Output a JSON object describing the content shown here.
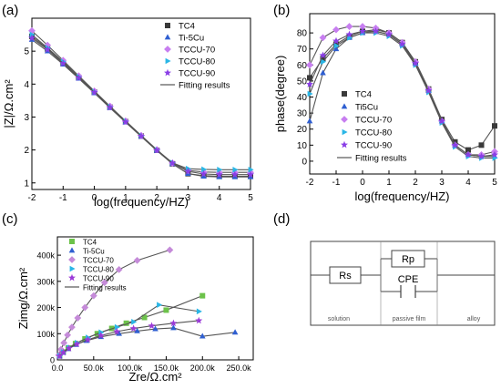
{
  "panels": {
    "a": "(a)",
    "b": "(b)",
    "c": "(c)",
    "d": "(d)"
  },
  "colors": {
    "TC4": "#3a3a3a",
    "Ti-5Cu": "#2f5fd1",
    "TCCU-70": "#c77ef0",
    "TCCU-80": "#2ab6e6",
    "TCCU-90": "#8a3ee6",
    "fit": "#555555",
    "TC4_c": "#6cc24a",
    "TCCU-70_c": "#c58bd9",
    "TCCU-80_c": "#2ab6e6",
    "TCCU-90_c": "#9b3ad8",
    "Ti-5Cu_c": "#2f5fd1"
  },
  "chart_data": [
    {
      "type": "scatter",
      "panel": "(a)",
      "xlabel": "log(frequency/HZ)",
      "ylabel": "|Z|/Ω.cm²",
      "xlim": [
        -2,
        5
      ],
      "ylim": [
        0.8,
        6
      ],
      "xticks": [
        "-2",
        "-1",
        "0",
        "1",
        "2",
        "3",
        "4",
        "5"
      ],
      "yticks": [
        "1",
        "2",
        "3",
        "4",
        "5"
      ],
      "legend": [
        "TC4",
        "Ti-5Cu",
        "TCCU-70",
        "TCCU-80",
        "TCCU-90",
        "Fitting results"
      ],
      "legend_position": "top-right",
      "series": [
        {
          "name": "TC4",
          "marker": "square",
          "x": [
            -2,
            -1.5,
            -1,
            -0.5,
            0,
            0.5,
            1,
            1.5,
            2,
            2.5,
            3,
            3.5,
            4,
            4.5,
            5
          ],
          "y": [
            5.45,
            5.07,
            4.65,
            4.2,
            3.76,
            3.3,
            2.86,
            2.42,
            1.99,
            1.58,
            1.28,
            1.22,
            1.2,
            1.2,
            1.2
          ]
        },
        {
          "name": "Ti-5Cu",
          "marker": "triangle",
          "x": [
            -2,
            -1.5,
            -1,
            -0.5,
            0,
            0.5,
            1,
            1.5,
            2,
            2.5,
            3,
            3.5,
            4,
            4.5,
            5
          ],
          "y": [
            5.35,
            5.0,
            4.6,
            4.17,
            3.73,
            3.28,
            2.84,
            2.41,
            1.98,
            1.58,
            1.28,
            1.2,
            1.18,
            1.18,
            1.18
          ]
        },
        {
          "name": "TCCU-70",
          "marker": "diamond",
          "x": [
            -2,
            -1.5,
            -1,
            -0.5,
            0,
            0.5,
            1,
            1.5,
            2,
            2.5,
            3,
            3.5,
            4,
            4.5,
            5
          ],
          "y": [
            5.62,
            5.18,
            4.72,
            4.25,
            3.79,
            3.33,
            2.88,
            2.44,
            2.01,
            1.6,
            1.38,
            1.33,
            1.32,
            1.32,
            1.32
          ]
        },
        {
          "name": "TCCU-80",
          "marker": "triangle-right",
          "x": [
            -2,
            -1.5,
            -1,
            -0.5,
            0,
            0.5,
            1,
            1.5,
            2,
            2.5,
            3,
            3.5,
            4,
            4.5,
            5
          ],
          "y": [
            5.5,
            5.1,
            4.68,
            4.22,
            3.77,
            3.31,
            2.87,
            2.43,
            2.0,
            1.61,
            1.43,
            1.41,
            1.4,
            1.4,
            1.4
          ]
        },
        {
          "name": "TCCU-90",
          "marker": "star",
          "x": [
            -2,
            -1.5,
            -1,
            -0.5,
            0,
            0.5,
            1,
            1.5,
            2,
            2.5,
            3,
            3.5,
            4,
            4.5,
            5
          ],
          "y": [
            5.4,
            5.05,
            4.63,
            4.19,
            3.75,
            3.29,
            2.85,
            2.42,
            1.99,
            1.6,
            1.35,
            1.27,
            1.25,
            1.25,
            1.25
          ]
        }
      ]
    },
    {
      "type": "scatter",
      "panel": "(b)",
      "xlabel": "log(frequency/HZ)",
      "ylabel": "phase(degree)",
      "xlim": [
        -2,
        5
      ],
      "ylim": [
        -8,
        92
      ],
      "xticks": [
        "-2",
        "-1",
        "0",
        "1",
        "2",
        "3",
        "4",
        "5"
      ],
      "yticks": [
        "0",
        "10",
        "20",
        "30",
        "40",
        "50",
        "60",
        "70",
        "80"
      ],
      "legend": [
        "TC4",
        "Ti5Cu",
        "TCCU-70",
        "TCCU-80",
        "TCCU-90",
        "Fitting results"
      ],
      "legend_position": "bottom-left",
      "series": [
        {
          "name": "TC4",
          "marker": "square",
          "x": [
            -2,
            -1.5,
            -1,
            -0.5,
            0,
            0.5,
            1,
            1.5,
            2,
            2.5,
            3,
            3.5,
            4,
            4.5,
            5
          ],
          "y": [
            52,
            64,
            73,
            78,
            81,
            82,
            80,
            74,
            62,
            45,
            26,
            12,
            7,
            10,
            22
          ]
        },
        {
          "name": "Ti5Cu",
          "marker": "triangle",
          "x": [
            -2,
            -1.5,
            -1,
            -0.5,
            0,
            0.5,
            1,
            1.5,
            2,
            2.5,
            3,
            3.5,
            4,
            4.5,
            5
          ],
          "y": [
            25,
            55,
            70,
            77,
            80,
            81,
            79,
            73,
            61,
            44,
            25,
            10,
            4,
            3,
            3
          ]
        },
        {
          "name": "TCCU-70",
          "marker": "diamond",
          "x": [
            -2,
            -1.5,
            -1,
            -0.5,
            0,
            0.5,
            1,
            1.5,
            2,
            2.5,
            3,
            3.5,
            4,
            4.5,
            5
          ],
          "y": [
            60,
            77,
            82,
            84,
            84,
            83,
            80,
            74,
            62,
            45,
            25,
            10,
            4,
            4,
            6
          ]
        },
        {
          "name": "TCCU-80",
          "marker": "triangle-right",
          "x": [
            -2,
            -1.5,
            -1,
            -0.5,
            0,
            0.5,
            1,
            1.5,
            2,
            2.5,
            3,
            3.5,
            4,
            4.5,
            5
          ],
          "y": [
            42,
            62,
            72,
            77,
            80,
            80,
            78,
            72,
            60,
            43,
            24,
            9,
            3,
            2,
            2
          ]
        },
        {
          "name": "TCCU-90",
          "marker": "star",
          "x": [
            -2,
            -1.5,
            -1,
            -0.5,
            0,
            0.5,
            1,
            1.5,
            2,
            2.5,
            3,
            3.5,
            4,
            4.5,
            5
          ],
          "y": [
            48,
            66,
            75,
            79,
            81,
            81,
            79,
            73,
            61,
            44,
            25,
            10,
            4,
            3,
            4
          ]
        }
      ]
    },
    {
      "type": "scatter",
      "panel": "(c)",
      "xlabel": "Zre/Ω.cm²",
      "ylabel": "Zimg/Ω.cm²",
      "xlim": [
        0,
        270000
      ],
      "ylim": [
        0,
        470000
      ],
      "xticks": [
        "0.0",
        "50.0k",
        "100.0k",
        "150.0k",
        "200.0k",
        "250.0k"
      ],
      "yticks": [
        "0",
        "100k",
        "200k",
        "300k",
        "400k"
      ],
      "legend": [
        "TC4",
        "Ti-5Cu",
        "TCCU-70",
        "TCCU-80",
        "TCCU-90",
        "Fitting results"
      ],
      "legend_position": "top-left",
      "series": [
        {
          "name": "TC4",
          "marker": "square",
          "x": [
            3000,
            8000,
            15000,
            25000,
            38000,
            55000,
            75000,
            95000,
            120000,
            150000,
            200000
          ],
          "y": [
            15000,
            30000,
            45000,
            62000,
            80000,
            100000,
            120000,
            140000,
            162000,
            190000,
            245000
          ]
        },
        {
          "name": "Ti-5Cu",
          "marker": "triangle",
          "x": [
            3000,
            8000,
            15000,
            25000,
            40000,
            60000,
            85000,
            110000,
            135000,
            160000,
            200000,
            245000
          ],
          "y": [
            14000,
            28000,
            42000,
            58000,
            73000,
            88000,
            100000,
            110000,
            118000,
            122000,
            90000,
            105000
          ]
        },
        {
          "name": "TCCU-70",
          "marker": "diamond",
          "x": [
            2000,
            5000,
            9000,
            14000,
            20000,
            28000,
            38000,
            50000,
            65000,
            85000,
            110000,
            155000
          ],
          "y": [
            18000,
            40000,
            65000,
            95000,
            125000,
            160000,
            200000,
            245000,
            295000,
            345000,
            380000,
            420000
          ]
        },
        {
          "name": "TCCU-80",
          "marker": "triangle-right",
          "x": [
            3000,
            8000,
            16000,
            27000,
            42000,
            60000,
            82000,
            105000,
            140000,
            195000
          ],
          "y": [
            15000,
            30000,
            47000,
            65000,
            85000,
            105000,
            125000,
            145000,
            210000,
            185000
          ]
        },
        {
          "name": "TCCU-90",
          "marker": "star",
          "x": [
            3000,
            8000,
            16000,
            27000,
            42000,
            60000,
            82000,
            105000,
            130000,
            160000,
            195000
          ],
          "y": [
            14000,
            28000,
            44000,
            60000,
            77000,
            93000,
            108000,
            120000,
            130000,
            140000,
            150000
          ]
        }
      ]
    }
  ],
  "circuit": {
    "rs": "Rs",
    "rp": "Rp",
    "cpe": "CPE",
    "solution": "solution",
    "passive_film": "passive film",
    "alloy": "alloy"
  }
}
